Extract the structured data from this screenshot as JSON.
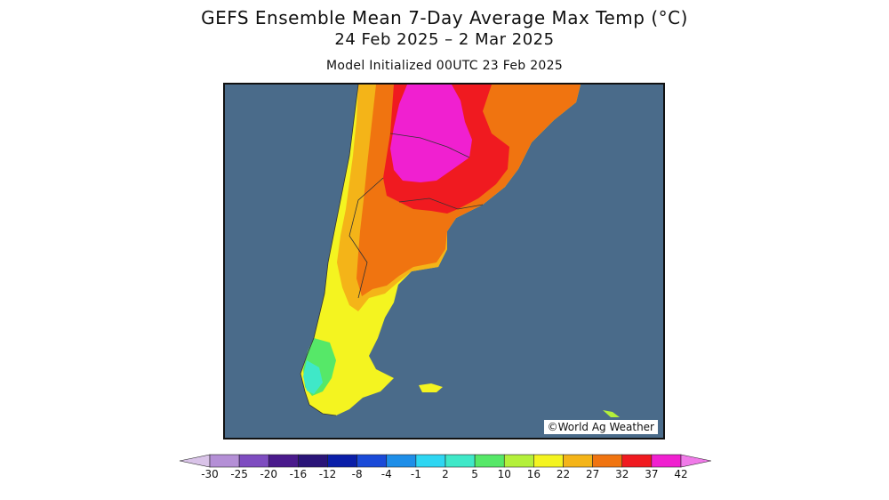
{
  "header": {
    "title": "GEFS Ensemble Mean 7-Day Average Max Temp (°C)",
    "date_range": "24 Feb 2025 – 2 Mar 2025",
    "init": "Model Initialized 00UTC 23 Feb 2025"
  },
  "map": {
    "region": "South America",
    "ocean_color": "#4a6b8a",
    "credit": "©World Ag Weather"
  },
  "legend": {
    "ticks": [
      "-30",
      "-25",
      "-20",
      "-16",
      "-12",
      "-8",
      "-4",
      "-1",
      "2",
      "5",
      "10",
      "16",
      "22",
      "27",
      "32",
      "37",
      "42"
    ],
    "colors": [
      "#d9c3e8",
      "#b48fd6",
      "#7e4cc0",
      "#4a1a8c",
      "#2a1478",
      "#0a1ea8",
      "#1a4ad8",
      "#1e8ee8",
      "#2ed6f2",
      "#3fe8c8",
      "#56e868",
      "#b4f03a",
      "#f4f420",
      "#f4b418",
      "#f07410",
      "#f01a20",
      "#f020d0",
      "#f07ae8"
    ]
  }
}
